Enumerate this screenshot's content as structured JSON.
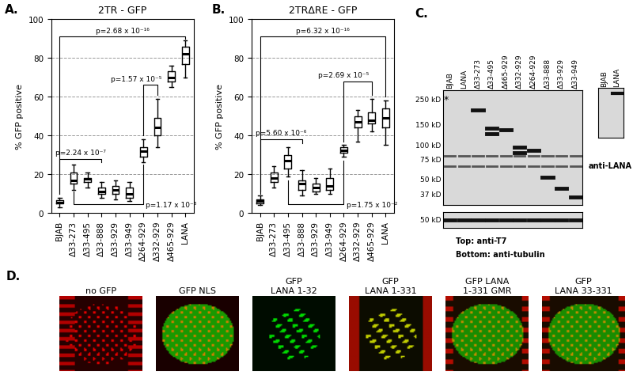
{
  "chart_data": [
    {
      "type": "box",
      "panel_label": "A.",
      "title": "2TR - GFP",
      "y_label": "% GFP positive",
      "categories": [
        "BJAB",
        "Δ33-273",
        "Δ33-495",
        "Δ33-888",
        "Δ33-929",
        "Δ33-949",
        "Δ264-929",
        "Δ332-929",
        "Δ465-929",
        "LANA"
      ],
      "boxes": [
        {
          "min": 3,
          "q1": 5,
          "median": 5.5,
          "q3": 6.5,
          "max": 8
        },
        {
          "min": 12,
          "q1": 15,
          "median": 17,
          "q3": 21,
          "max": 25
        },
        {
          "min": 13,
          "q1": 16,
          "median": 17.5,
          "q3": 18,
          "max": 21
        },
        {
          "min": 8,
          "q1": 10,
          "median": 11,
          "q3": 13,
          "max": 16
        },
        {
          "min": 7,
          "q1": 10,
          "median": 12,
          "q3": 14,
          "max": 17
        },
        {
          "min": 6,
          "q1": 8,
          "median": 10,
          "q3": 13,
          "max": 16
        },
        {
          "min": 26,
          "q1": 29,
          "median": 32,
          "q3": 34,
          "max": 38
        },
        {
          "min": 34,
          "q1": 40,
          "median": 44,
          "q3": 49,
          "max": 59
        },
        {
          "min": 65,
          "q1": 68,
          "median": 70,
          "q3": 73,
          "max": 76
        },
        {
          "min": 70,
          "q1": 77,
          "median": 82,
          "q3": 86,
          "max": 89
        }
      ],
      "annotations": [
        "p=2.68 x 10⁻¹⁶",
        "p=1.57 x 10⁻⁵",
        "p=2.24 x 10⁻⁷",
        "p=1.17 x 10⁻³"
      ],
      "ylim": [
        0,
        100
      ],
      "yticks": [
        0,
        20,
        40,
        60,
        80,
        100
      ],
      "grid": true
    },
    {
      "type": "box",
      "panel_label": "B.",
      "title": "2TRΔRE - GFP",
      "y_label": "% GFP positive",
      "categories": [
        "BJAB",
        "Δ33-273",
        "Δ33-495",
        "Δ33-888",
        "Δ33-929",
        "Δ33-949",
        "Δ264-929",
        "Δ332-929",
        "Δ465-929",
        "LANA"
      ],
      "boxes": [
        {
          "min": 4,
          "q1": 5,
          "median": 6,
          "q3": 7,
          "max": 9
        },
        {
          "min": 13,
          "q1": 16,
          "median": 18,
          "q3": 21,
          "max": 24
        },
        {
          "min": 19,
          "q1": 23,
          "median": 27,
          "q3": 30,
          "max": 34
        },
        {
          "min": 9,
          "q1": 12,
          "median": 15,
          "q3": 17,
          "max": 22
        },
        {
          "min": 10,
          "q1": 11,
          "median": 13,
          "q3": 15,
          "max": 18
        },
        {
          "min": 10,
          "q1": 12,
          "median": 14,
          "q3": 18,
          "max": 23
        },
        {
          "min": 29,
          "q1": 31,
          "median": 32.5,
          "q3": 34,
          "max": 35
        },
        {
          "min": 37,
          "q1": 44,
          "median": 47,
          "q3": 50,
          "max": 53
        },
        {
          "min": 42,
          "q1": 46,
          "median": 48,
          "q3": 52,
          "max": 59
        },
        {
          "min": 35,
          "q1": 44,
          "median": 49,
          "q3": 54,
          "max": 58
        }
      ],
      "annotations": [
        "p=6.32 x 10⁻¹⁶",
        "p=2.69 x 10⁻⁵",
        "p=5.60 x 10⁻⁶",
        "p=1.75 x 10⁻²"
      ],
      "ylim": [
        0,
        100
      ],
      "yticks": [
        0,
        20,
        40,
        60,
        80,
        100
      ],
      "grid": true
    }
  ],
  "blot": {
    "panel_label": "C.",
    "lanes": [
      "BJAB",
      "LANA",
      "Δ33-273",
      "Δ33-495",
      "Δ465-929",
      "Δ332-929",
      "Δ264-929",
      "Δ33-888",
      "Δ33-929",
      "Δ33-949"
    ],
    "bands": [
      [],
      [],
      [
        200
      ],
      [
        140,
        125
      ],
      [
        135
      ],
      [
        95,
        85
      ],
      [
        90
      ],
      [
        52
      ],
      [
        42
      ],
      [
        35
      ]
    ],
    "common_bands": [
      80,
      65
    ],
    "markers": [
      {
        "value": 250,
        "label": "250 kD"
      },
      {
        "value": 150,
        "label": "150 kD"
      },
      {
        "value": 100,
        "label": "100 kD"
      },
      {
        "value": 75,
        "label": "75 kD"
      },
      {
        "value": 50,
        "label": "50 kD"
      },
      {
        "value": 37,
        "label": "37 kD"
      }
    ],
    "kd_range": [
      30,
      300
    ],
    "asterisk": "*",
    "tubulin_marker": "50 kD",
    "caption_top": "Top: anti-T7",
    "caption_bottom": "Bottom: anti-tubulin",
    "side_lanes": [
      "BJAB",
      "LANA"
    ],
    "side_bands": [
      [],
      [
        230
      ]
    ],
    "side_antibody": "anti-LANA"
  },
  "images": {
    "panel_label": "D.",
    "captions": [
      "no GFP",
      "GFP NLS",
      "GFP\nLANA 1-32",
      "GFP\nLANA 1-331",
      "GFP LANA\n1-331 GMR",
      "GFP\nLANA 33-331"
    ]
  }
}
